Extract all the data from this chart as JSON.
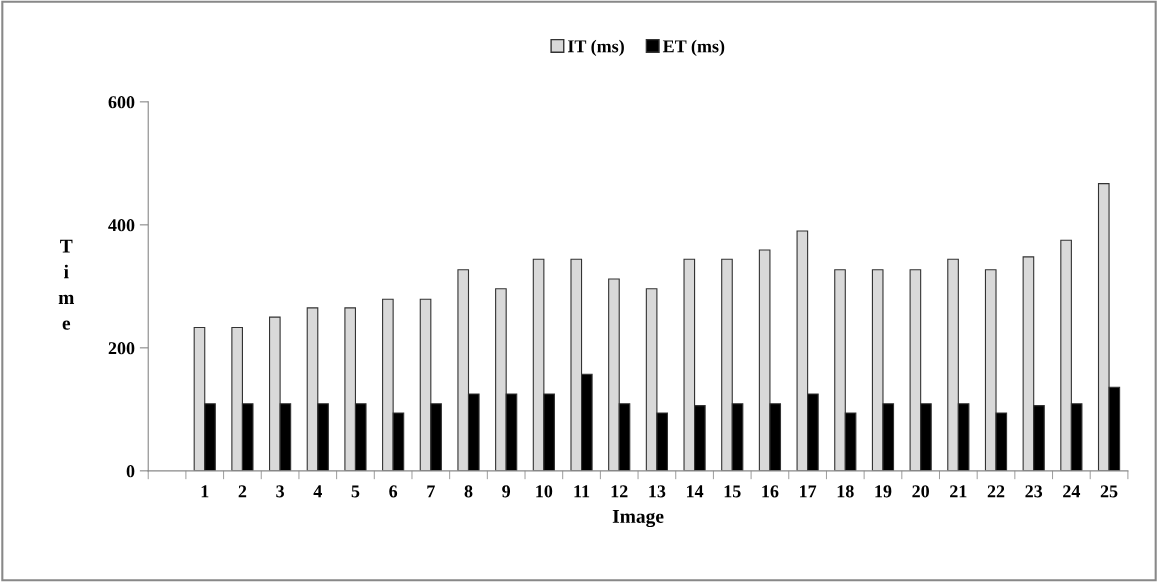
{
  "chart_data": {
    "type": "bar",
    "xlabel": "Image",
    "ylabel": "Time",
    "categories": [
      null,
      "1",
      "2",
      "3",
      "4",
      "5",
      "6",
      "7",
      "8",
      "9",
      "10",
      "11",
      "12",
      "13",
      "14",
      "15",
      "16",
      "17",
      "18",
      "19",
      "20",
      "21",
      "22",
      "23",
      "24",
      "25"
    ],
    "series": [
      {
        "name": "IT (ms)",
        "color": "#d9d9d9",
        "values": [
          null,
          233,
          233,
          250,
          265,
          265,
          279,
          279,
          327,
          296,
          344,
          344,
          312,
          296,
          344,
          344,
          359,
          390,
          327,
          327,
          327,
          344,
          327,
          348,
          375,
          467
        ]
      },
      {
        "name": "ET (ms)",
        "color": "#000000",
        "values": [
          null,
          109,
          109,
          109,
          109,
          109,
          94,
          109,
          125,
          125,
          125,
          157,
          109,
          94,
          106,
          109,
          109,
          125,
          94,
          109,
          109,
          109,
          94,
          106,
          109,
          136
        ]
      }
    ],
    "ylim": [
      0,
      600
    ],
    "yticks": [
      0,
      200,
      400,
      600
    ],
    "grid": false,
    "legend": "top"
  }
}
